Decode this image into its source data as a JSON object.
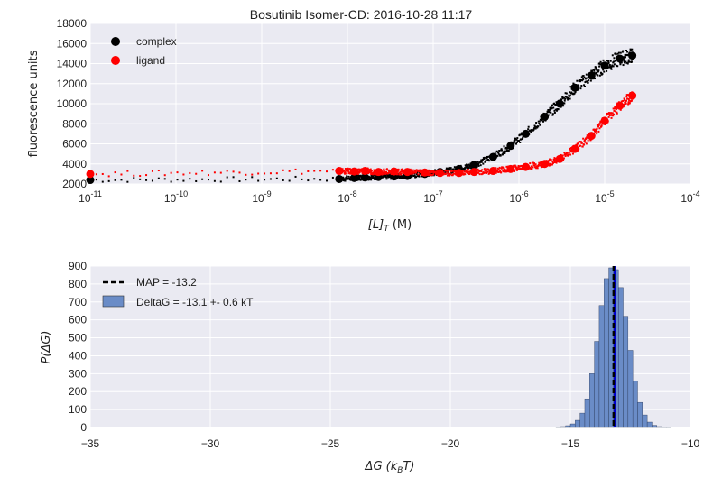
{
  "colors": {
    "background": "#eaeaf2",
    "grid": "#ffffff",
    "complex": "#000000",
    "ligand": "#ff0000",
    "histogram": "#6a8cc7",
    "map_line": "#000000",
    "deltag_line": "#0000cc"
  },
  "chart_data": [
    {
      "type": "scatter",
      "title": "Bosutinib Isomer-CD: 2016-10-28 11:17",
      "xlabel": "[L]_T (M)",
      "ylabel": "fluorescence units",
      "xscale": "log",
      "xlim": [
        1e-11,
        0.0001
      ],
      "ylim": [
        2000,
        18000
      ],
      "xticks": [
        "10^-11",
        "10^-10",
        "10^-9",
        "10^-8",
        "10^-7",
        "10^-6",
        "10^-5",
        "10^-4"
      ],
      "yticks": [
        "2000",
        "4000",
        "6000",
        "8000",
        "10000",
        "12000",
        "14000",
        "16000",
        "18000"
      ],
      "grid": true,
      "legend_position": "top-left",
      "series": [
        {
          "name": "complex",
          "color": "#000000",
          "points": [
            [
              1e-11,
              2400
            ],
            [
              8e-09,
              2500
            ],
            [
              1.2e-08,
              2600
            ],
            [
              1.6e-08,
              2650
            ],
            [
              2.3e-08,
              2700
            ],
            [
              3.5e-08,
              2750
            ],
            [
              5e-08,
              2800
            ],
            [
              8e-08,
              3000
            ],
            [
              1.2e-07,
              3200
            ],
            [
              2e-07,
              3500
            ],
            [
              3e-07,
              3900
            ],
            [
              5e-07,
              4700
            ],
            [
              8e-07,
              5800
            ],
            [
              1.2e-06,
              7000
            ],
            [
              2e-06,
              8700
            ],
            [
              3e-06,
              10000
            ],
            [
              4.5e-06,
              11600
            ],
            [
              7e-06,
              12800
            ],
            [
              1e-05,
              13800
            ],
            [
              1.5e-05,
              14500
            ],
            [
              2.1e-05,
              14800
            ]
          ]
        },
        {
          "name": "ligand",
          "color": "#ff0000",
          "points": [
            [
              1e-11,
              3000
            ],
            [
              8e-09,
              3300
            ],
            [
              1.2e-08,
              3250
            ],
            [
              1.6e-08,
              3300
            ],
            [
              2.3e-08,
              3200
            ],
            [
              3.5e-08,
              3250
            ],
            [
              5e-08,
              3200
            ],
            [
              8e-08,
              3150
            ],
            [
              1.2e-07,
              3100
            ],
            [
              2e-07,
              3100
            ],
            [
              3e-07,
              3200
            ],
            [
              5e-07,
              3300
            ],
            [
              8e-07,
              3500
            ],
            [
              1.2e-06,
              3700
            ],
            [
              2e-06,
              4000
            ],
            [
              3e-06,
              4500
            ],
            [
              4.5e-06,
              5500
            ],
            [
              7e-06,
              6800
            ],
            [
              1e-05,
              8300
            ],
            [
              1.5e-05,
              9800
            ],
            [
              2.1e-05,
              10800
            ]
          ]
        }
      ]
    },
    {
      "type": "bar",
      "xlabel": "ΔG (k_B T)",
      "ylabel": "P(ΔG)",
      "xlim": [
        -35,
        -10
      ],
      "ylim": [
        0,
        900
      ],
      "xticks": [
        "−35",
        "−30",
        "−25",
        "−20",
        "−15",
        "−10"
      ],
      "yticks": [
        "0",
        "100",
        "200",
        "300",
        "400",
        "500",
        "600",
        "700",
        "800",
        "900"
      ],
      "grid": true,
      "legend_position": "top-left",
      "map_line": {
        "label": "MAP = -13.2",
        "x": -13.2
      },
      "histogram": {
        "label": "DeltaG = -13.1 +- 0.6 kT",
        "bins_x": [
          -15.6,
          -15.4,
          -15.2,
          -15.0,
          -14.8,
          -14.6,
          -14.4,
          -14.2,
          -14.0,
          -13.8,
          -13.6,
          -13.4,
          -13.2,
          -13.0,
          -12.8,
          -12.6,
          -12.4,
          -12.2,
          -12.0,
          -11.8,
          -11.6,
          -11.4,
          -11.2,
          -11.0
        ],
        "counts": [
          2,
          5,
          10,
          20,
          40,
          80,
          160,
          300,
          480,
          680,
          830,
          890,
          880,
          780,
          620,
          430,
          260,
          140,
          70,
          30,
          12,
          5,
          2,
          1
        ]
      }
    }
  ]
}
